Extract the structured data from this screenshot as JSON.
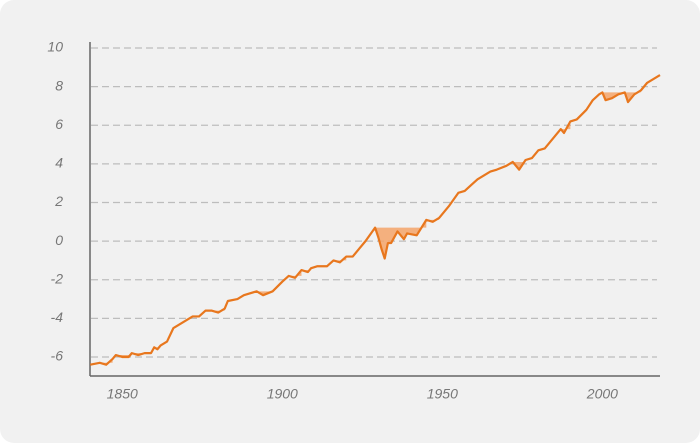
{
  "chart_data": {
    "type": "line",
    "x": [
      1840,
      1843,
      1845,
      1847,
      1848,
      1850,
      1852,
      1853,
      1855,
      1857,
      1859,
      1860,
      1861,
      1862,
      1864,
      1866,
      1868,
      1872,
      1874,
      1876,
      1878,
      1880,
      1882,
      1883,
      1886,
      1888,
      1892,
      1894,
      1897,
      1900,
      1902,
      1904,
      1906,
      1908,
      1909,
      1911,
      1914,
      1916,
      1918,
      1920,
      1922,
      1924,
      1926,
      1929,
      1930,
      1931,
      1932,
      1933,
      1934,
      1936,
      1937,
      1938,
      1939,
      1942,
      1945,
      1947,
      1949,
      1952,
      1955,
      1957,
      1959,
      1961,
      1963,
      1965,
      1967,
      1970,
      1972,
      1974,
      1976,
      1978,
      1980,
      1982,
      1985,
      1987,
      1988,
      1990,
      1992,
      1995,
      1997,
      1999,
      2000,
      2001,
      2003,
      2005,
      2007,
      2008,
      2010,
      2012,
      2014,
      2016,
      2018
    ],
    "series": [
      {
        "color": "#e8771e",
        "values": [
          -6.4,
          -6.3,
          -6.4,
          -6.1,
          -5.9,
          -6.0,
          -6.0,
          -5.8,
          -5.9,
          -5.8,
          -5.8,
          -5.5,
          -5.6,
          -5.4,
          -5.2,
          -4.5,
          -4.3,
          -3.9,
          -3.9,
          -3.6,
          -3.6,
          -3.7,
          -3.5,
          -3.1,
          -3.0,
          -2.8,
          -2.6,
          -2.8,
          -2.6,
          -2.1,
          -1.8,
          -1.9,
          -1.5,
          -1.6,
          -1.4,
          -1.3,
          -1.3,
          -1.0,
          -1.1,
          -0.8,
          -0.8,
          -0.4,
          0.0,
          0.7,
          0.2,
          -0.4,
          -0.9,
          -0.1,
          -0.1,
          0.5,
          0.3,
          0.1,
          0.4,
          0.3,
          1.1,
          1.0,
          1.2,
          1.8,
          2.5,
          2.6,
          2.9,
          3.2,
          3.4,
          3.6,
          3.7,
          3.9,
          4.1,
          3.7,
          4.2,
          4.3,
          4.7,
          4.8,
          5.4,
          5.8,
          5.6,
          6.2,
          6.3,
          6.8,
          7.3,
          7.6,
          7.7,
          7.3,
          7.4,
          7.6,
          7.7,
          7.2,
          7.6,
          7.8,
          8.2,
          8.4,
          8.6
        ]
      }
    ],
    "xlim": [
      1839,
      2018
    ],
    "xticks": [
      1850,
      1900,
      1950,
      2000
    ],
    "ylim": [
      -7,
      10
    ],
    "yticks": [
      -6,
      -4,
      -2,
      0,
      2,
      4,
      6,
      8,
      10
    ],
    "grid": true,
    "drawdown_color": "#f4a46a"
  }
}
